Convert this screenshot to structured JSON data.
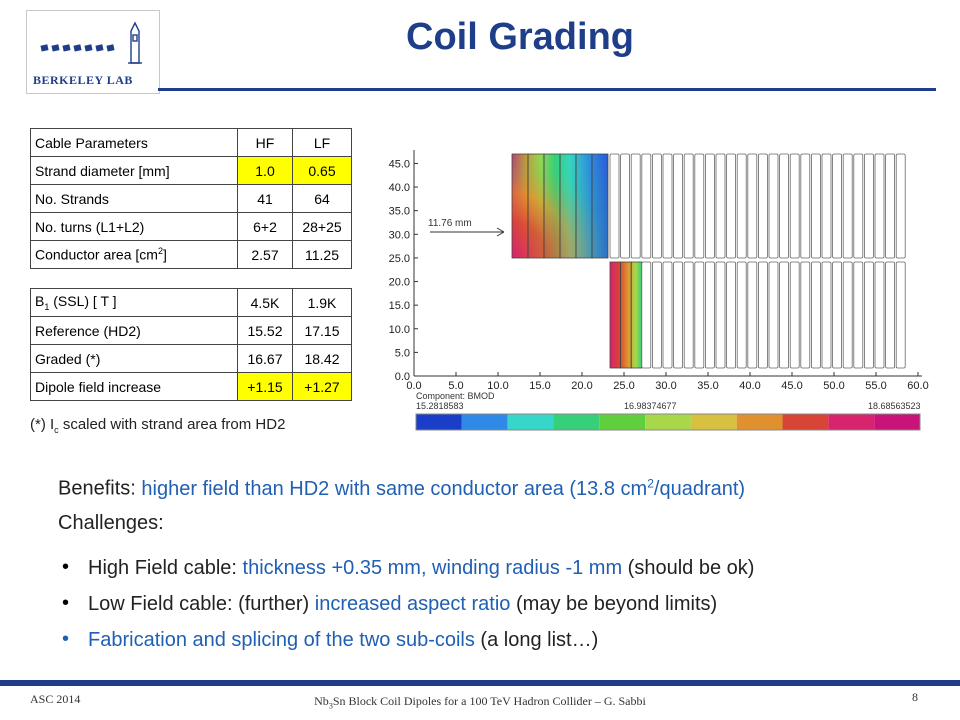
{
  "logo": {
    "text": "BERKELEY LAB",
    "icon": "berkeley-lab-logo"
  },
  "title": "Coil Grading",
  "cable_table": {
    "header": [
      "Cable Parameters",
      "HF",
      "LF"
    ],
    "rows": [
      {
        "label": "Strand diameter [mm]",
        "hf": "1.0",
        "lf": "0.65",
        "highlight": true
      },
      {
        "label": "No. Strands",
        "hf": "41",
        "lf": "64",
        "highlight": false
      },
      {
        "label": "No. turns (L1+L2)",
        "hf": "6+2",
        "lf": "28+25",
        "highlight": false
      },
      {
        "label_main": "Conductor area [cm",
        "label_sup": "2",
        "label_end": "]",
        "hf": "2.57",
        "lf": "11.25",
        "highlight": false
      }
    ]
  },
  "field_table": {
    "header_main": "B",
    "header_sub": "1",
    "header_end": " (SSL) [ T ]",
    "header_hf": "4.5K",
    "header_lf": "1.9K",
    "rows": [
      {
        "label": "Reference (HD2)",
        "hf": "15.52",
        "lf": "17.15"
      },
      {
        "label": "Graded (*)",
        "hf": "16.67",
        "lf": "18.42"
      },
      {
        "label": "Dipole field increase",
        "hf": "+1.15",
        "lf": "+1.27"
      }
    ]
  },
  "note": {
    "pre": "(*) I",
    "sub": "c",
    "post": " scaled with strand area from HD2"
  },
  "figure": {
    "annotation": "11.76  mm",
    "y_ticks": [
      "45.0",
      "40.0",
      "35.0",
      "30.0",
      "25.0",
      "20.0",
      "15.0",
      "10.0",
      "5.0",
      "0.0"
    ],
    "x_ticks": [
      "0.0",
      "5.0",
      "10.0",
      "15.0",
      "20.0",
      "25.0",
      "30.0",
      "35.0",
      "40.0",
      "45.0",
      "50.0",
      "55.0",
      "60.0"
    ],
    "component_label": "Component: BMOD",
    "scale_min": "15.2818583",
    "scale_mid": "16.98374677",
    "scale_max": "18.68563523",
    "scale_colors": [
      "#1a3ec8",
      "#2e8ae6",
      "#36d6c8",
      "#36d07a",
      "#5fcf3e",
      "#a8d84a",
      "#d8c040",
      "#e0902e",
      "#d84436",
      "#d8246e",
      "#c81478"
    ]
  },
  "benefits": {
    "label": "Benefits: ",
    "text_main": "higher field than HD2 with same conductor area (13.8 cm",
    "text_sup": "2",
    "text_end": "/quadrant)"
  },
  "challenges": "Challenges:",
  "bullets": [
    {
      "a": "High Field cable: ",
      "b": "thickness +0.35 mm, winding radius -1 mm",
      "c": " (should be ok)"
    },
    {
      "a": "Low Field cable: (further) ",
      "b": "increased aspect ratio ",
      "c": " (may be beyond limits)"
    },
    {
      "a": "",
      "b": "Fabrication and splicing of the two sub-coils",
      "c": " (a long list…)"
    }
  ],
  "footer": {
    "left": "ASC 2014",
    "center_pre": "Nb",
    "center_sub": "3",
    "center_post": "Sn Block Coil Dipoles for a 100 TeV Hadron Collider – G. Sabbi",
    "page": "8"
  }
}
